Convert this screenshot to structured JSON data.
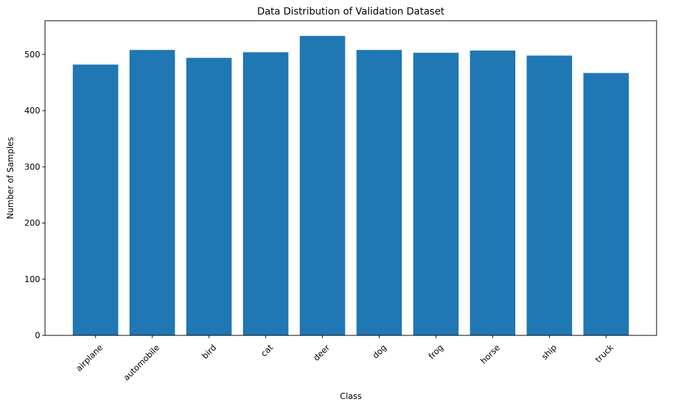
{
  "chart_data": {
    "type": "bar",
    "title": "Data Distribution of Validation Dataset",
    "xlabel": "Class",
    "ylabel": "Number of Samples",
    "categories": [
      "airplane",
      "automobile",
      "bird",
      "cat",
      "deer",
      "dog",
      "frog",
      "horse",
      "ship",
      "truck"
    ],
    "values": [
      482,
      508,
      494,
      504,
      533,
      508,
      503,
      507,
      498,
      467
    ],
    "ylim": [
      0,
      560
    ],
    "yticks": [
      0,
      100,
      200,
      300,
      400,
      500
    ],
    "grid": false,
    "bar_color": "#1f77b4"
  }
}
